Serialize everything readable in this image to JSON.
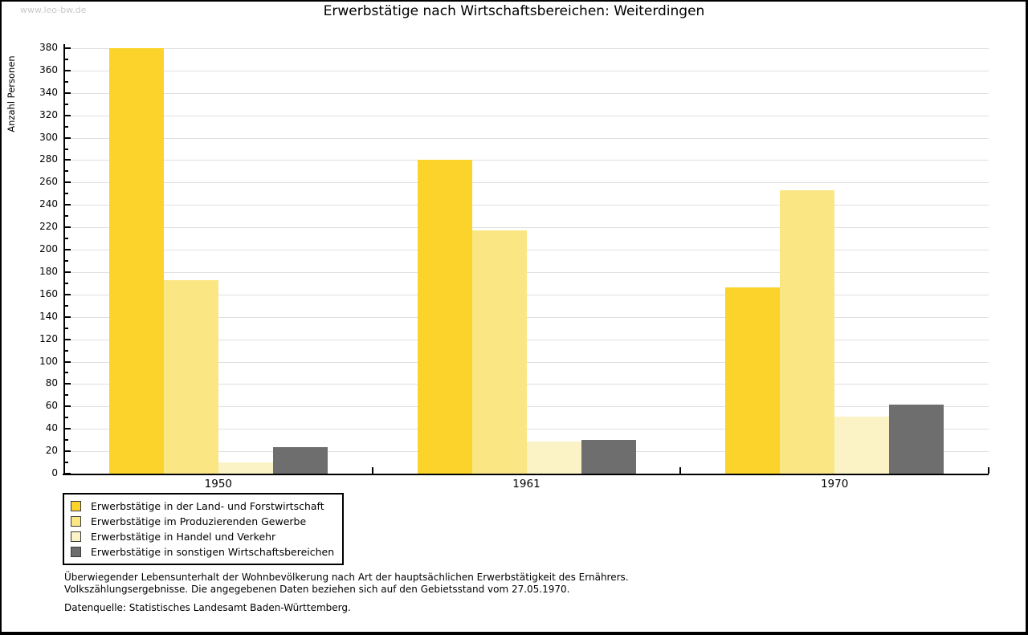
{
  "watermark": "www.leo-bw.de",
  "chart_data": {
    "type": "bar",
    "title": "Erwerbstätige nach Wirtschaftsbereichen: Weiterdingen",
    "ylabel": "Anzahl Personen",
    "xlabel": "",
    "categories": [
      "1950",
      "1961",
      "1970"
    ],
    "series": [
      {
        "name": "Erwerbstätige in der Land- und Forstwirtschaft",
        "color": "#fbd32b",
        "values": [
          380,
          280,
          166
        ]
      },
      {
        "name": "Erwerbstätige im Produzierenden Gewerbe",
        "color": "#fae784",
        "values": [
          173,
          217,
          253
        ]
      },
      {
        "name": "Erwerbstätige in Handel und Verkehr",
        "color": "#fbf3c6",
        "values": [
          10,
          29,
          51
        ]
      },
      {
        "name": "Erwerbstätige in sonstigen Wirtschaftsbereichen",
        "color": "#6e6e6e",
        "values": [
          24,
          30,
          62
        ]
      }
    ],
    "ylim": [
      0,
      380
    ],
    "ytick_step": 20,
    "yminor_step": 10,
    "grid": true,
    "legend_position": "bottom-left"
  },
  "colors": {
    "grid": "#e0e0e0",
    "axis": "#000000",
    "watermark": "#c9c9c9"
  },
  "notes": {
    "line1": "Überwiegender Lebensunterhalt der Wohnbevölkerung nach Art der hauptsächlichen Erwerbstätigkeit des Ernährers.",
    "line2": "Volkszählungsergebnisse. Die angegebenen Daten beziehen sich auf den Gebietsstand vom 27.05.1970.",
    "source": "Datenquelle: Statistisches Landesamt Baden-Württemberg."
  }
}
